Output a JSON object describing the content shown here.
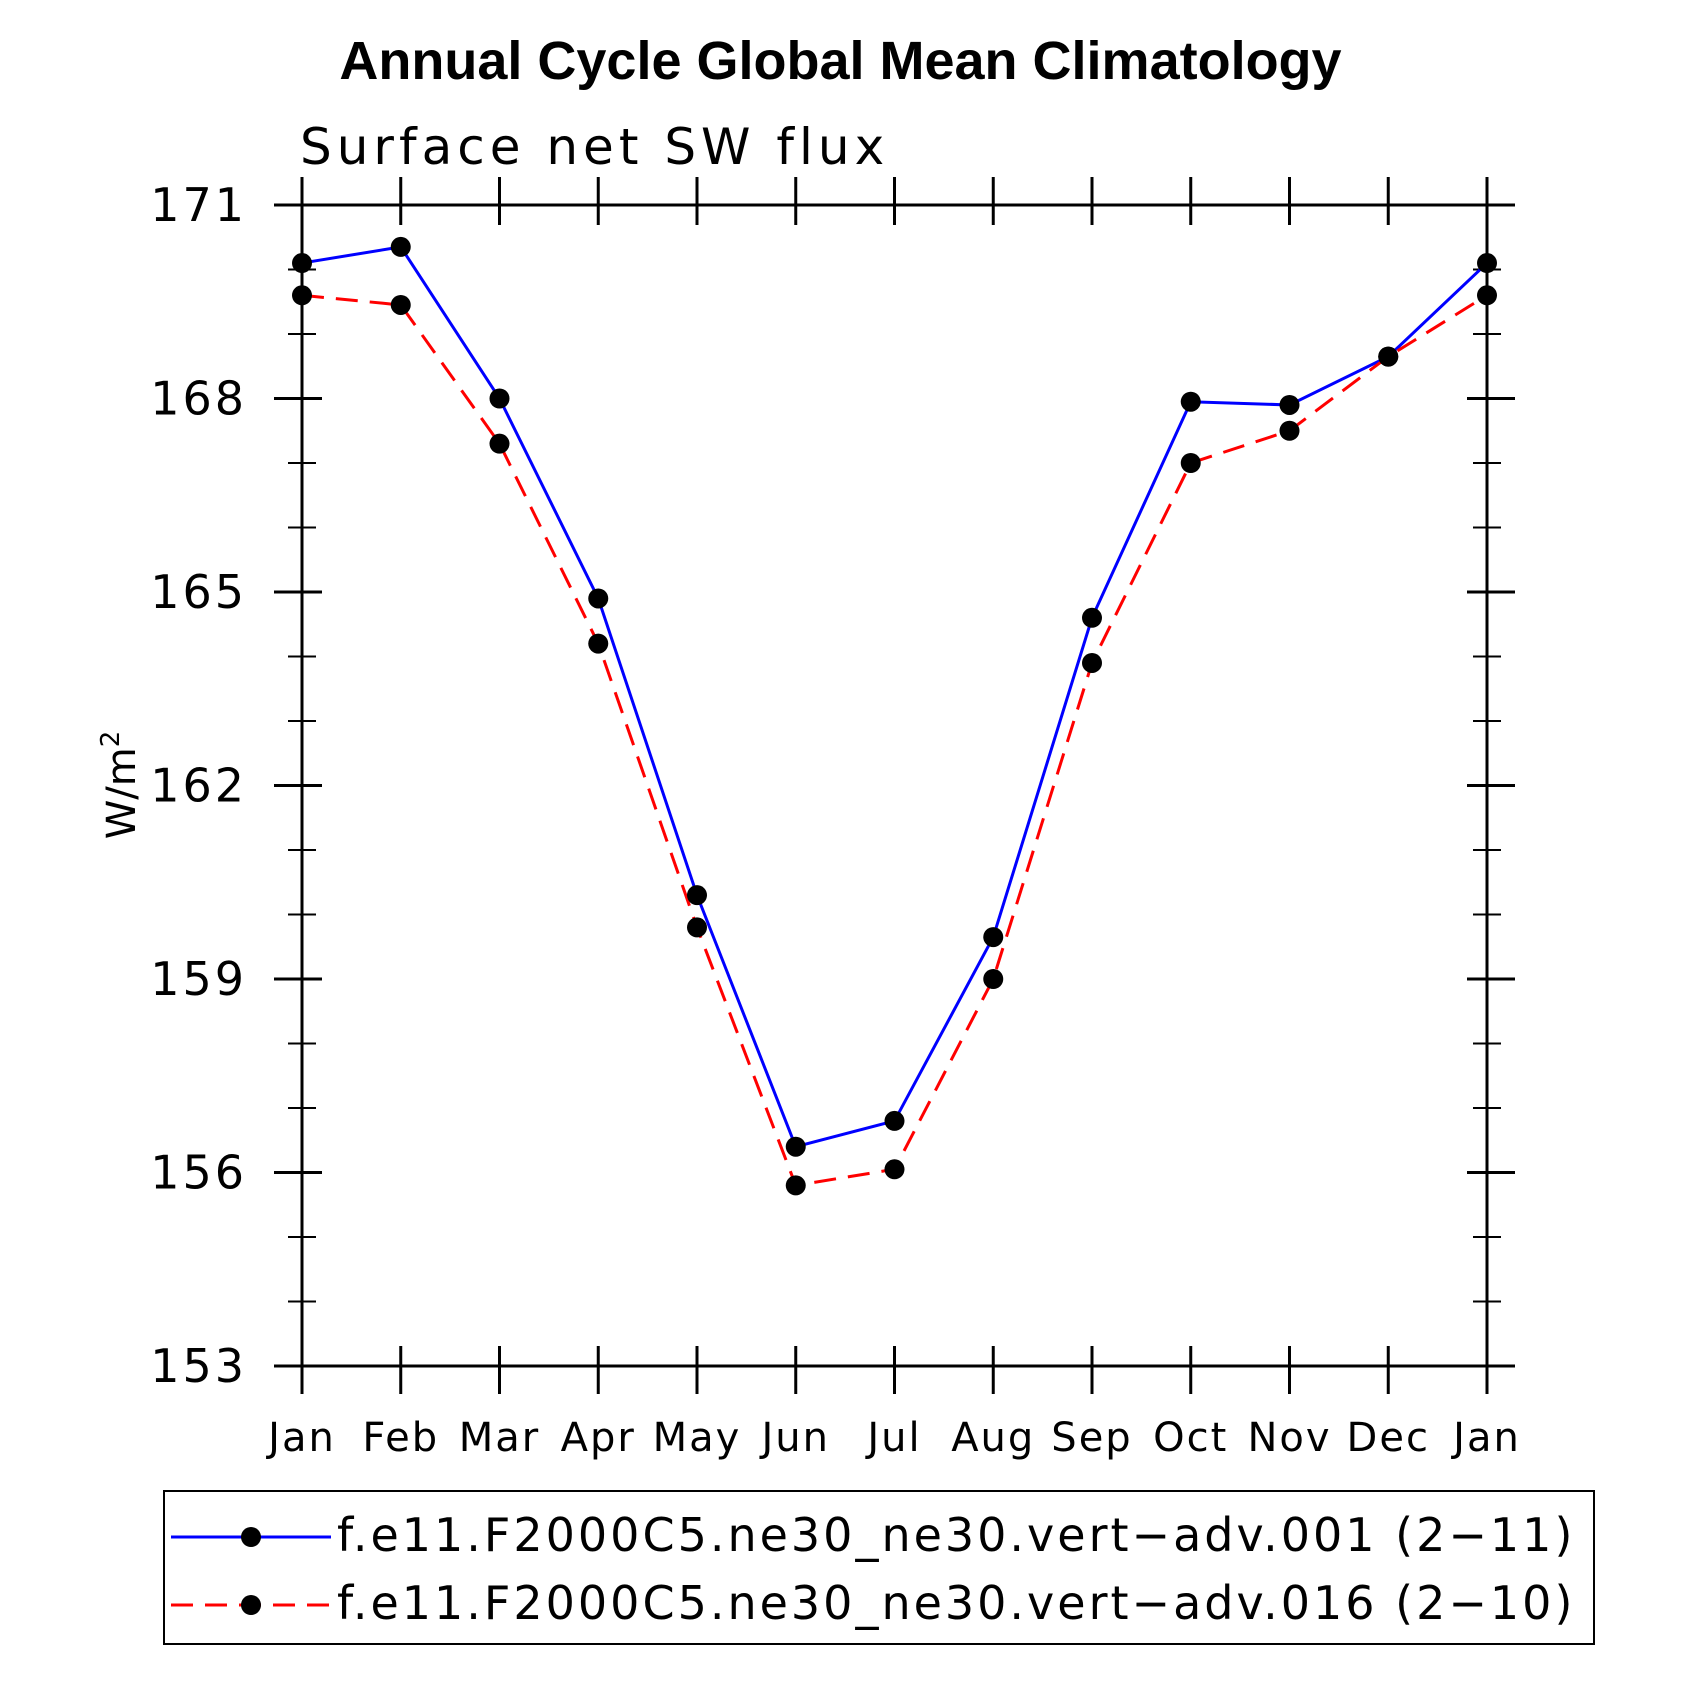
{
  "chart_data": {
    "type": "line",
    "title": "Annual Cycle Global Mean Climatology",
    "subtitle": "Surface net SW flux",
    "ylabel": "W/m",
    "ylabel_superscript": "2",
    "xlabel": "",
    "categories": [
      "Jan",
      "Feb",
      "Mar",
      "Apr",
      "May",
      "Jun",
      "Jul",
      "Aug",
      "Sep",
      "Oct",
      "Nov",
      "Dec",
      "Jan"
    ],
    "ylim": [
      153,
      171
    ],
    "yticks": [
      153,
      156,
      159,
      162,
      165,
      168,
      171
    ],
    "yticks_minor": [
      154,
      155,
      157,
      158,
      160,
      161,
      163,
      164,
      166,
      167,
      169,
      170
    ],
    "series": [
      {
        "name": "f.e11.F2000C5.ne30_ne30.vert−adv.001 (2−11)",
        "color": "#0000ff",
        "dash": "solid",
        "values": [
          170.1,
          170.35,
          168.0,
          164.9,
          160.3,
          156.4,
          156.8,
          159.65,
          164.6,
          167.95,
          167.9,
          168.65,
          170.1
        ]
      },
      {
        "name": "f.e11.F2000C5.ne30_ne30.vert−adv.016 (2−10)",
        "color": "#ff0000",
        "dash": "dashed",
        "values": [
          169.6,
          169.45,
          167.3,
          164.2,
          159.8,
          155.8,
          156.05,
          159.0,
          163.9,
          167.0,
          167.5,
          168.65,
          169.6
        ]
      }
    ],
    "legend_position": "bottom"
  }
}
